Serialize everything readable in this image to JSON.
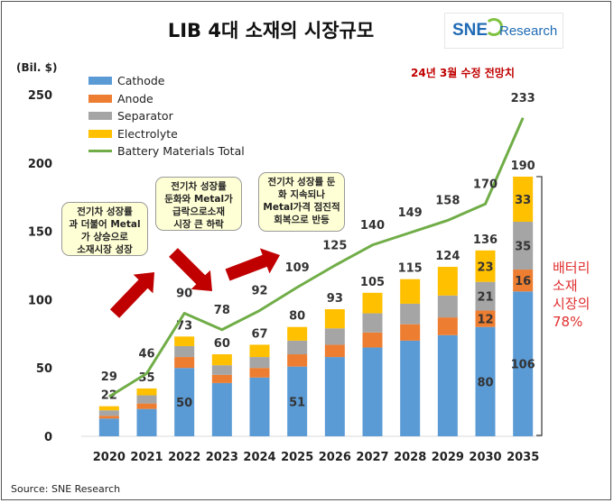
{
  "title": "LIB 4대 소재의 시장규모",
  "logo": {
    "sne": "SNE",
    "research": "Research"
  },
  "unit_label": "(Bil. $)",
  "update_note": "24년 3월  수정 전망치",
  "source": "Source: SNE Research",
  "callouts": [
    {
      "lines": [
        "전기차 성장률",
        "과 더불어 Metal",
        "가 상승으로",
        "소재시장 성장"
      ]
    },
    {
      "lines": [
        "전기차 성장률",
        "둔화와 Metal가",
        "급락으로소재",
        "시장 큰 하락"
      ]
    },
    {
      "lines": [
        "전기차 성장률 둔",
        "화 지속되나",
        "Metal가격 점진적",
        "회복으로 반등"
      ]
    }
  ],
  "share_note": {
    "lines": [
      "배터리",
      "소재",
      "시장의",
      "78%"
    ]
  },
  "colors": {
    "cathode": "#5b9bd5",
    "anode": "#ed7d31",
    "separator": "#a5a5a5",
    "electrolyte": "#ffc000",
    "total_line": "#70ad47",
    "arrow": "#c00000"
  },
  "chart_data": {
    "type": "bar",
    "stacked": true,
    "categories": [
      "2020",
      "2021",
      "2022",
      "2023",
      "2024",
      "2025",
      "2026",
      "2027",
      "2028",
      "2029",
      "2030",
      "2035"
    ],
    "ylim": [
      0,
      250
    ],
    "yticks": [
      "0",
      "50",
      "100",
      "150",
      "200",
      "250"
    ],
    "series": [
      {
        "name": "Cathode",
        "values": [
          13,
          20,
          50,
          39,
          43,
          51,
          58,
          65,
          70,
          74,
          80,
          106
        ]
      },
      {
        "name": "Anode",
        "values": [
          2,
          4,
          8,
          6,
          7,
          9,
          9,
          11,
          12,
          13,
          12,
          16
        ]
      },
      {
        "name": "Separator",
        "values": [
          4,
          6,
          8,
          7,
          8,
          10,
          12,
          14,
          15,
          16,
          21,
          35
        ]
      },
      {
        "name": "Electrolyte",
        "values": [
          3,
          5,
          7,
          8,
          9,
          10,
          14,
          15,
          18,
          21,
          23,
          33
        ]
      }
    ],
    "bar_totals": [
      22,
      35,
      73,
      60,
      67,
      80,
      93,
      105,
      115,
      124,
      136,
      190
    ],
    "bar_total_labels": [
      "22",
      "35",
      "73",
      "60",
      "67",
      "80",
      "93",
      "105",
      "115",
      "124",
      "136",
      "190"
    ],
    "segment_labels": [
      {
        "category": "2022",
        "series": "Cathode",
        "text": "50"
      },
      {
        "category": "2025",
        "series": "Cathode",
        "text": "51"
      },
      {
        "category": "2030",
        "series": "Cathode",
        "text": "80"
      },
      {
        "category": "2030",
        "series": "Anode",
        "text": "12"
      },
      {
        "category": "2030",
        "series": "Separator",
        "text": "21"
      },
      {
        "category": "2030",
        "series": "Electrolyte",
        "text": "23"
      },
      {
        "category": "2035",
        "series": "Cathode",
        "text": "106"
      },
      {
        "category": "2035",
        "series": "Anode",
        "text": "16"
      },
      {
        "category": "2035",
        "series": "Separator",
        "text": "35"
      },
      {
        "category": "2035",
        "series": "Electrolyte",
        "text": "33"
      }
    ],
    "line": {
      "name": "Battery Materials Total",
      "values": [
        29,
        46,
        90,
        78,
        92,
        109,
        125,
        140,
        149,
        158,
        170,
        233
      ],
      "labels": [
        "29",
        "46",
        "90",
        "78",
        "92",
        "109",
        "125",
        "140",
        "149",
        "158",
        "170",
        "233"
      ]
    }
  }
}
